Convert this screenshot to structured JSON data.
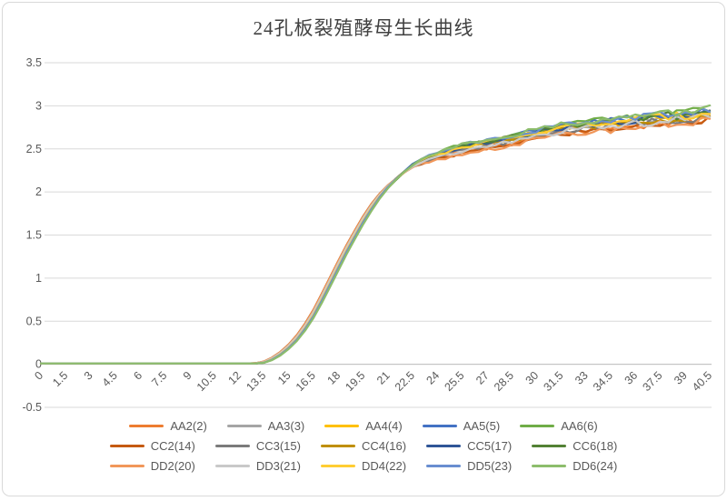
{
  "chart": {
    "background_color": "#FFFFFF",
    "border_color": "#D9D9D9",
    "gridline_color": "#D9D9D9",
    "axis_line_color": "#BFBFBF",
    "axis_label_color": "#595959",
    "legend_label_color": "#595959",
    "title_color": "#404040"
  },
  "chart_data": {
    "type": "line",
    "title": "24孔板裂殖酵母生长曲线",
    "xlabel": "",
    "ylabel": "",
    "ylim": [
      -0.5,
      3.5
    ],
    "grid": true,
    "legend_position": "bottom",
    "legend_columns": 5,
    "yticks": [
      3.5,
      3,
      2.5,
      2,
      1.5,
      1,
      0.5,
      0,
      -0.5
    ],
    "xticks": [
      0,
      1.5,
      3,
      4.5,
      6,
      7.5,
      9,
      10.5,
      12,
      13.5,
      15,
      16.5,
      18,
      19.5,
      21,
      22.5,
      24,
      25.5,
      27,
      28.5,
      30,
      31.5,
      33,
      34.5,
      36,
      37.5,
      39,
      40.5
    ],
    "x": [
      0,
      0.5,
      1,
      1.5,
      2,
      2.5,
      3,
      3.5,
      4,
      4.5,
      5,
      5.5,
      6,
      6.5,
      7,
      7.5,
      8,
      8.5,
      9,
      9.5,
      10,
      10.5,
      11,
      11.5,
      12,
      12.5,
      13,
      13.5,
      14,
      14.5,
      15,
      15.5,
      16,
      16.5,
      17,
      17.5,
      18,
      18.5,
      19,
      19.5,
      20,
      20.5,
      21,
      21.5,
      22,
      22.5,
      23,
      23.5,
      24,
      24.5,
      25,
      25.5,
      26,
      26.5,
      27,
      27.5,
      28,
      28.5,
      29,
      29.5,
      30,
      30.5,
      31,
      31.5,
      32,
      32.5,
      33,
      33.5,
      34,
      34.5,
      35,
      35.5,
      36,
      36.5,
      37,
      37.5,
      38,
      38.5,
      39,
      39.5,
      40,
      40.5
    ],
    "base_values": [
      0.01,
      0.01,
      0.01,
      0.01,
      0.01,
      0.01,
      0.01,
      0.01,
      0.01,
      0.01,
      0.01,
      0.01,
      0.01,
      0.01,
      0.01,
      0.01,
      0.01,
      0.01,
      0.01,
      0.01,
      0.01,
      0.01,
      0.01,
      0.01,
      0.01,
      0.01,
      0.01,
      0.02,
      0.06,
      0.12,
      0.2,
      0.3,
      0.43,
      0.58,
      0.76,
      0.95,
      1.14,
      1.33,
      1.5,
      1.67,
      1.82,
      1.95,
      2.06,
      2.15,
      2.23,
      2.3,
      2.35,
      2.39,
      2.42,
      2.45,
      2.48,
      2.5,
      2.52,
      2.54,
      2.56,
      2.58,
      2.59,
      2.61,
      2.63,
      2.65,
      2.67,
      2.69,
      2.71,
      2.73,
      2.74,
      2.75,
      2.76,
      2.77,
      2.78,
      2.79,
      2.8,
      2.81,
      2.82,
      2.83,
      2.84,
      2.85,
      2.85,
      2.86,
      2.87,
      2.88,
      2.89,
      2.92
    ],
    "series": [
      {
        "name": "AA2(2)",
        "color": "#ED7D31",
        "time_shift": 0.1,
        "plateau_offset": -0.05,
        "noise_seed": 1
      },
      {
        "name": "AA3(3)",
        "color": "#A5A5A5",
        "time_shift": 0.02,
        "plateau_offset": -0.01,
        "noise_seed": 2
      },
      {
        "name": "AA4(4)",
        "color": "#FFC000",
        "time_shift": 0.0,
        "plateau_offset": 0.01,
        "noise_seed": 3
      },
      {
        "name": "AA5(5)",
        "color": "#4472C4",
        "time_shift": -0.02,
        "plateau_offset": 0.04,
        "noise_seed": 4
      },
      {
        "name": "AA6(6)",
        "color": "#70AD47",
        "time_shift": -0.12,
        "plateau_offset": 0.05,
        "noise_seed": 5
      },
      {
        "name": "CC2(14)",
        "color": "#C55A11",
        "time_shift": 0.15,
        "plateau_offset": -0.06,
        "noise_seed": 6
      },
      {
        "name": "CC3(15)",
        "color": "#7B7B7B",
        "time_shift": 0.05,
        "plateau_offset": -0.02,
        "noise_seed": 7
      },
      {
        "name": "CC4(16)",
        "color": "#BF8F00",
        "time_shift": 0.02,
        "plateau_offset": 0.0,
        "noise_seed": 8
      },
      {
        "name": "CC5(17)",
        "color": "#2F5597",
        "time_shift": -0.05,
        "plateau_offset": 0.02,
        "noise_seed": 9
      },
      {
        "name": "CC6(18)",
        "color": "#538135",
        "time_shift": -0.1,
        "plateau_offset": 0.03,
        "noise_seed": 10
      },
      {
        "name": "DD2(20)",
        "color": "#F1975A",
        "time_shift": 0.13,
        "plateau_offset": -0.07,
        "noise_seed": 11
      },
      {
        "name": "DD3(21)",
        "color": "#C9C9C9",
        "time_shift": 0.07,
        "plateau_offset": -0.03,
        "noise_seed": 12
      },
      {
        "name": "DD4(22)",
        "color": "#FFCD33",
        "time_shift": -0.03,
        "plateau_offset": 0.02,
        "noise_seed": 13
      },
      {
        "name": "DD5(23)",
        "color": "#698ED0",
        "time_shift": -0.07,
        "plateau_offset": 0.05,
        "noise_seed": 14
      },
      {
        "name": "DD6(24)",
        "color": "#8DBD6C",
        "time_shift": -0.15,
        "plateau_offset": 0.06,
        "noise_seed": 15
      }
    ]
  }
}
